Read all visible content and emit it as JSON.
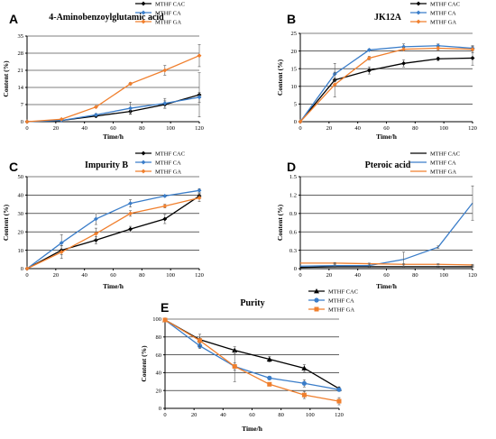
{
  "chart_data": [
    {
      "panel": "A",
      "type": "line",
      "title": "4-Aminobenzoylglutamic acid",
      "xlabel": "Time/h",
      "ylabel": "Content (%)",
      "x": [
        0,
        24,
        48,
        72,
        96,
        120
      ],
      "xticks": [
        0,
        20,
        40,
        60,
        80,
        100,
        120
      ],
      "yticks": [
        0,
        7,
        14,
        21,
        28,
        35
      ],
      "ylim": [
        0,
        35
      ],
      "xlim": [
        0,
        120
      ],
      "legend": "top-right",
      "series": [
        {
          "name": "MTHF CAC",
          "color": "#000000",
          "marker": "diamond",
          "values": [
            0,
            0.5,
            2.3,
            4.2,
            7.0,
            11.0
          ],
          "errors": [
            0,
            0.2,
            0.5,
            1.0,
            1.5,
            9.0
          ]
        },
        {
          "name": "MTHF CA",
          "color": "#3A7DC9",
          "marker": "diamond",
          "values": [
            0,
            0.5,
            2.8,
            5.5,
            7.5,
            10.0
          ],
          "errors": [
            0,
            0.2,
            0.5,
            2.5,
            2.0,
            2.0
          ]
        },
        {
          "name": "MTHF GA",
          "color": "#F07F2D",
          "marker": "diamond",
          "values": [
            0,
            1.0,
            6.0,
            15.5,
            21.0,
            27.0
          ],
          "errors": [
            0,
            0.2,
            0.3,
            0.5,
            2.0,
            4.5
          ]
        }
      ]
    },
    {
      "panel": "B",
      "type": "line",
      "title": "JK12A",
      "xlabel": "Time/h",
      "ylabel": "Content (%)",
      "x": [
        0,
        24,
        48,
        72,
        96,
        120
      ],
      "xticks": [
        0,
        20,
        40,
        60,
        80,
        100,
        120
      ],
      "yticks": [
        0,
        5,
        10,
        15,
        20,
        25
      ],
      "ylim": [
        0,
        25
      ],
      "xlim": [
        0,
        120
      ],
      "legend": "top-right",
      "series": [
        {
          "name": "MTHF CAC",
          "color": "#000000",
          "marker": "diamond",
          "values": [
            0,
            11.8,
            14.5,
            16.5,
            17.8,
            18.0
          ],
          "errors": [
            0,
            0.5,
            1.0,
            1.0,
            0.5,
            2.0
          ]
        },
        {
          "name": "MTHF CA",
          "color": "#3A7DC9",
          "marker": "diamond",
          "values": [
            0,
            13.5,
            20.3,
            21.2,
            21.5,
            20.8
          ],
          "errors": [
            0,
            3.0,
            0.3,
            0.8,
            0.5,
            0.5
          ]
        },
        {
          "name": "MTHF GA",
          "color": "#F07F2D",
          "marker": "diamond",
          "values": [
            0,
            10.5,
            18.0,
            20.5,
            20.8,
            20.5
          ],
          "errors": [
            0,
            3.5,
            0.5,
            0.5,
            0.5,
            1.0
          ]
        }
      ]
    },
    {
      "panel": "C",
      "type": "line",
      "title": "Impurity B",
      "xlabel": "Time/h",
      "ylabel": "Content (%)",
      "x": [
        0,
        24,
        48,
        72,
        96,
        120
      ],
      "xticks": [
        0,
        20,
        40,
        60,
        80,
        100,
        120
      ],
      "yticks": [
        0,
        10,
        20,
        30,
        40,
        50
      ],
      "ylim": [
        0,
        50
      ],
      "xlim": [
        0,
        120
      ],
      "legend": "top-right",
      "series": [
        {
          "name": "MTHF CAC",
          "color": "#000000",
          "marker": "diamond",
          "values": [
            0,
            10.0,
            15.5,
            21.5,
            27.0,
            39.5
          ],
          "errors": [
            0,
            2.5,
            2.0,
            1.5,
            2.5,
            1.5
          ]
        },
        {
          "name": "MTHF CA",
          "color": "#3A7DC9",
          "marker": "diamond",
          "values": [
            0,
            14.0,
            27.0,
            35.5,
            39.5,
            42.5
          ],
          "errors": [
            0,
            4.5,
            3.0,
            2.0,
            0.5,
            1.0
          ]
        },
        {
          "name": "MTHF GA",
          "color": "#F07F2D",
          "marker": "diamond",
          "values": [
            0,
            9.0,
            19.0,
            30.0,
            34.0,
            38.5
          ],
          "errors": [
            0,
            3.5,
            3.0,
            1.5,
            1.0,
            2.0
          ]
        }
      ]
    },
    {
      "panel": "D",
      "type": "line",
      "title": "Pteroic acid",
      "xlabel": "Time/h",
      "ylabel": "Content (%)",
      "x": [
        0,
        24,
        48,
        72,
        96,
        120
      ],
      "xticks": [
        0,
        20,
        40,
        60,
        80,
        100,
        120
      ],
      "yticks": [
        0,
        0.3,
        0.6,
        0.9,
        1.2,
        1.5
      ],
      "ylim": [
        0,
        1.5
      ],
      "xlim": [
        0,
        120
      ],
      "legend": "top-right",
      "series": [
        {
          "name": "MTHF CAC",
          "color": "#000000",
          "marker": "none",
          "values": [
            0.02,
            0.03,
            0.03,
            0.03,
            0.03,
            0.03
          ],
          "errors": [
            0,
            0.01,
            0.01,
            0.01,
            0.01,
            0.01
          ]
        },
        {
          "name": "MTHF CA",
          "color": "#3A7DC9",
          "marker": "none",
          "values": [
            0.04,
            0.05,
            0.05,
            0.15,
            0.35,
            1.07
          ],
          "errors": [
            0,
            0.02,
            0.03,
            0.12,
            0.02,
            0.28
          ]
        },
        {
          "name": "MTHF GA",
          "color": "#F07F2D",
          "marker": "none",
          "values": [
            0.09,
            0.09,
            0.08,
            0.07,
            0.07,
            0.06
          ],
          "errors": [
            0,
            0.01,
            0.01,
            0.01,
            0.01,
            0.01
          ]
        }
      ]
    },
    {
      "panel": "E",
      "type": "line",
      "title": "Purity",
      "xlabel": "Time/h",
      "ylabel": "Content (%)",
      "x": [
        0,
        24,
        48,
        72,
        96,
        120
      ],
      "xticks": [
        0,
        20,
        40,
        60,
        80,
        100,
        120
      ],
      "yticks": [
        0,
        20,
        40,
        60,
        80,
        100
      ],
      "ylim": [
        0,
        100
      ],
      "xlim": [
        0,
        120
      ],
      "legend": "top-right",
      "series": [
        {
          "name": "MTHF CAC",
          "color": "#000000",
          "marker": "triangle",
          "values": [
            99,
            77,
            65,
            55,
            45,
            22
          ],
          "errors": [
            0,
            3,
            4,
            3,
            4,
            2
          ]
        },
        {
          "name": "MTHF CA",
          "color": "#3A7DC9",
          "marker": "circle",
          "values": [
            99,
            70,
            47,
            34,
            28,
            21
          ],
          "errors": [
            0,
            3,
            4,
            2,
            4,
            2
          ]
        },
        {
          "name": "MTHF GA",
          "color": "#F07F2D",
          "marker": "square",
          "values": [
            99,
            76,
            47,
            27,
            15,
            8
          ],
          "errors": [
            0,
            7,
            17,
            2,
            4,
            4
          ]
        }
      ]
    }
  ]
}
